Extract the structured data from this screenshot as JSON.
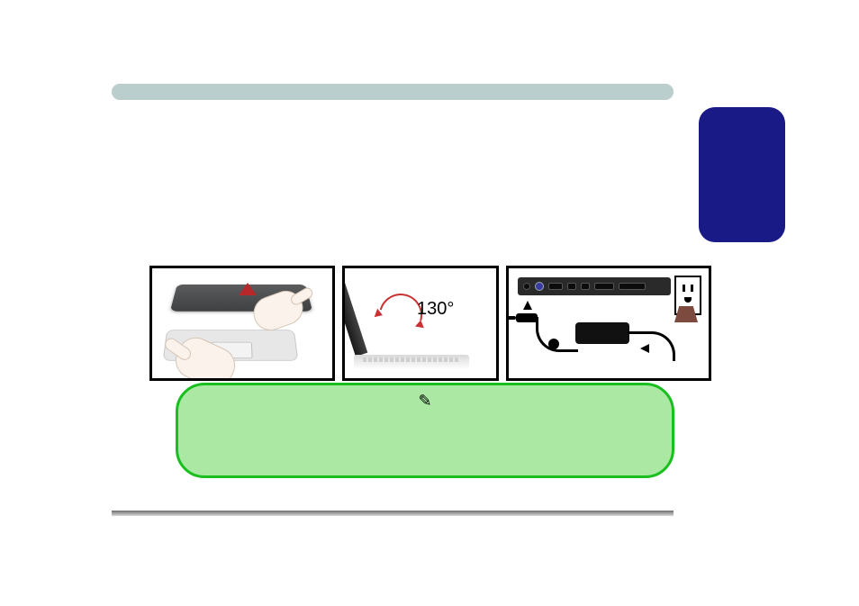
{
  "colors": {
    "header_bar": "#bacfcd",
    "side_tab": "#191a86",
    "note_bg": "#aae8a3",
    "note_border": "#18bf1e",
    "panel_border": "#000000",
    "accent_red": "#c93133"
  },
  "panels": {
    "p2": {
      "angle_text": "130°"
    }
  },
  "note": {
    "icon": "✎"
  }
}
